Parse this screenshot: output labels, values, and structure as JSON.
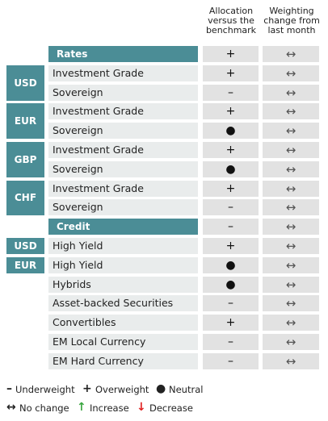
{
  "header": {
    "allocation": "Allocation versus the benchmark",
    "weighting": "Weighting change from last month"
  },
  "sections": [
    {
      "title": "Rates",
      "allocation": "+",
      "weighting": "↔",
      "groups": [
        {
          "region": "USD",
          "rows": [
            {
              "label": "Investment Grade",
              "allocation": "+",
              "weighting": "↔"
            },
            {
              "label": "Sovereign",
              "allocation": "–",
              "weighting": "↔"
            }
          ]
        },
        {
          "region": "EUR",
          "rows": [
            {
              "label": "Investment Grade",
              "allocation": "+",
              "weighting": "↔"
            },
            {
              "label": "Sovereign",
              "allocation": "●",
              "weighting": "↔"
            }
          ]
        },
        {
          "region": "GBP",
          "rows": [
            {
              "label": "Investment Grade",
              "allocation": "+",
              "weighting": "↔"
            },
            {
              "label": "Sovereign",
              "allocation": "●",
              "weighting": "↔"
            }
          ]
        },
        {
          "region": "CHF",
          "rows": [
            {
              "label": "Investment Grade",
              "allocation": "+",
              "weighting": "↔"
            },
            {
              "label": "Sovereign",
              "allocation": "–",
              "weighting": "↔"
            }
          ]
        }
      ]
    },
    {
      "title": "Credit",
      "allocation": "–",
      "weighting": "↔",
      "groups": [
        {
          "region": "USD",
          "rows": [
            {
              "label": "High Yield",
              "allocation": "+",
              "weighting": "↔"
            }
          ]
        },
        {
          "region": "EUR",
          "rows": [
            {
              "label": "High Yield",
              "allocation": "●",
              "weighting": "↔"
            }
          ]
        },
        {
          "rows": [
            {
              "label": "Hybrids",
              "allocation": "●",
              "weighting": "↔"
            },
            {
              "label": "Asset-backed Securities",
              "allocation": "–",
              "weighting": "↔"
            },
            {
              "label": "Convertibles",
              "allocation": "+",
              "weighting": "↔"
            },
            {
              "label": "EM Local Currency",
              "allocation": "–",
              "weighting": "↔"
            },
            {
              "label": "EM Hard Currency",
              "allocation": "–",
              "weighting": "↔"
            }
          ]
        }
      ]
    }
  ],
  "legend": [
    [
      {
        "symbol": "–",
        "label": "Underweight"
      },
      {
        "symbol": "+",
        "label": "Overweight"
      },
      {
        "symbol": "●",
        "label": "Neutral"
      }
    ],
    [
      {
        "symbol": "↔",
        "label": "No change"
      },
      {
        "symbol": "↑",
        "label": "Increase",
        "color": "#3aa640"
      },
      {
        "symbol": "↓",
        "label": "Decrease",
        "color": "#e02020"
      }
    ]
  ]
}
